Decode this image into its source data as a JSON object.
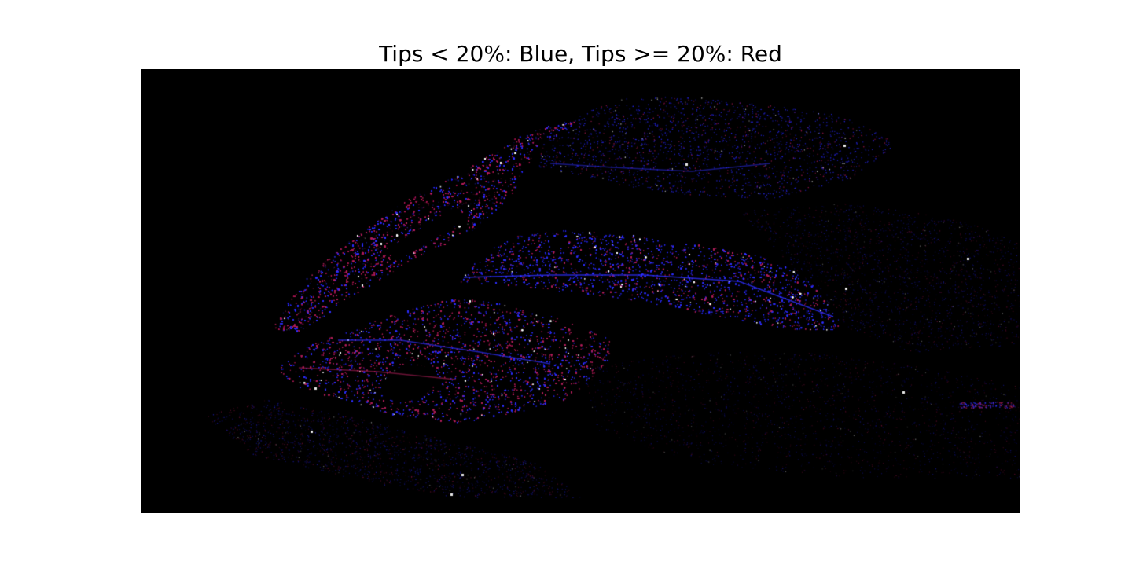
{
  "figure": {
    "title": "Tips < 20%: Blue, Tips >= 20%: Red"
  },
  "map": {
    "background_color": "#000000",
    "low_tip_color": "#2f2fff",
    "high_tip_color": "#b0205a",
    "highlight_color": "#ffffff"
  }
}
